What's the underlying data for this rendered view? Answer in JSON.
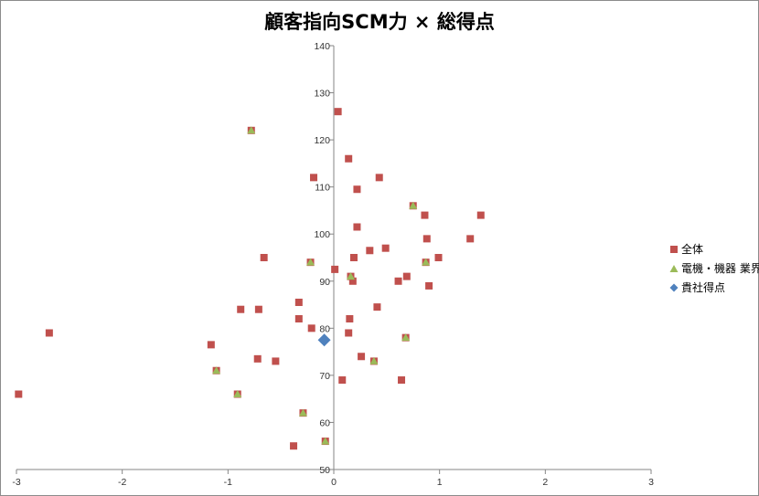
{
  "chart_data": {
    "type": "scatter",
    "title": "顧客指向SCM力 × 総得点",
    "xlim": [
      -3,
      3
    ],
    "ylim": [
      50,
      140
    ],
    "x_ticks": [
      -3,
      -2,
      -1,
      0,
      1,
      2,
      3
    ],
    "y_ticks": [
      50,
      60,
      70,
      80,
      90,
      100,
      110,
      120,
      130,
      140
    ],
    "grid": false,
    "legend_position": "right",
    "series": [
      {
        "name": "全体",
        "marker": "square",
        "color": "#c0504d",
        "points": [
          [
            -2.98,
            66
          ],
          [
            -2.69,
            79
          ],
          [
            -1.16,
            76.5
          ],
          [
            -1.11,
            71
          ],
          [
            -0.88,
            84
          ],
          [
            -0.91,
            66
          ],
          [
            -0.78,
            122
          ],
          [
            -0.72,
            73.5
          ],
          [
            -0.71,
            84
          ],
          [
            -0.66,
            95
          ],
          [
            -0.55,
            73
          ],
          [
            -0.38,
            55
          ],
          [
            -0.33,
            85.5
          ],
          [
            -0.33,
            82
          ],
          [
            -0.29,
            62
          ],
          [
            -0.22,
            94
          ],
          [
            -0.21,
            80
          ],
          [
            -0.19,
            112
          ],
          [
            -0.08,
            56
          ],
          [
            0.01,
            92.5
          ],
          [
            0.04,
            126
          ],
          [
            0.08,
            69
          ],
          [
            0.14,
            116
          ],
          [
            0.14,
            79
          ],
          [
            0.15,
            82
          ],
          [
            0.16,
            91
          ],
          [
            0.18,
            90
          ],
          [
            0.19,
            95
          ],
          [
            0.22,
            101.5
          ],
          [
            0.22,
            109.5
          ],
          [
            0.26,
            74
          ],
          [
            0.34,
            96.5
          ],
          [
            0.38,
            73
          ],
          [
            0.41,
            84.5
          ],
          [
            0.43,
            112
          ],
          [
            0.49,
            97
          ],
          [
            0.61,
            90
          ],
          [
            0.64,
            69
          ],
          [
            0.68,
            78
          ],
          [
            0.69,
            91
          ],
          [
            0.75,
            106
          ],
          [
            0.86,
            104
          ],
          [
            0.87,
            94
          ],
          [
            0.88,
            99
          ],
          [
            0.9,
            89
          ],
          [
            0.99,
            95
          ],
          [
            1.29,
            99
          ],
          [
            1.39,
            104
          ]
        ]
      },
      {
        "name": "電機・機器 業界",
        "marker": "triangle",
        "color": "#9bbb59",
        "points": [
          [
            -1.11,
            71
          ],
          [
            -0.91,
            66
          ],
          [
            -0.78,
            122
          ],
          [
            -0.29,
            62
          ],
          [
            -0.22,
            94
          ],
          [
            -0.08,
            56
          ],
          [
            0.16,
            91
          ],
          [
            0.38,
            73
          ],
          [
            0.68,
            78
          ],
          [
            0.75,
            106
          ],
          [
            0.87,
            94
          ]
        ]
      },
      {
        "name": "貴社得点",
        "marker": "diamond",
        "color": "#4f81bd",
        "points": [
          [
            -0.09,
            77.5
          ]
        ]
      }
    ]
  }
}
